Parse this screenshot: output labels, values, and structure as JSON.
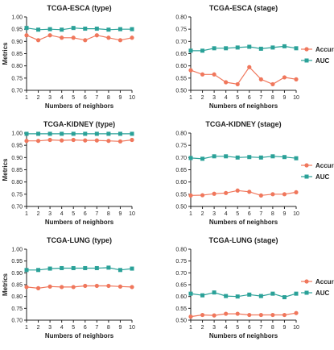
{
  "chart_data": [
    {
      "type": "line",
      "title": "TCGA-ESCA (type)",
      "xlabel": "Numbers of neighbors",
      "ylabel": "Metrics",
      "x": [
        1,
        2,
        3,
        4,
        5,
        6,
        7,
        8,
        9,
        10
      ],
      "ylim": [
        0.7,
        1.0
      ],
      "yticks": [
        "0.70",
        "0.75",
        "0.80",
        "0.85",
        "0.90",
        "0.95",
        "1.00"
      ],
      "series": [
        {
          "name": "Accuracy",
          "color": "#f0775c",
          "marker": "circle",
          "values": [
            0.925,
            0.905,
            0.925,
            0.915,
            0.915,
            0.905,
            0.925,
            0.915,
            0.905,
            0.915
          ]
        },
        {
          "name": "AUC",
          "color": "#2aa198",
          "marker": "square",
          "values": [
            0.955,
            0.948,
            0.95,
            0.948,
            0.955,
            0.952,
            0.952,
            0.948,
            0.95,
            0.95
          ]
        }
      ],
      "legend": false,
      "grid": false
    },
    {
      "type": "line",
      "title": "TCGA-ESCA (stage)",
      "xlabel": "Numbers of neighbors",
      "ylabel": "",
      "x": [
        1,
        2,
        3,
        4,
        5,
        6,
        7,
        8,
        9,
        10
      ],
      "ylim": [
        0.5,
        0.8
      ],
      "yticks": [
        "0.50",
        "0.55",
        "0.60",
        "0.65",
        "0.70",
        "0.75",
        "0.80"
      ],
      "series": [
        {
          "name": "Accuracy",
          "color": "#f0775c",
          "marker": "circle",
          "values": [
            0.582,
            0.565,
            0.565,
            0.533,
            0.525,
            0.595,
            0.545,
            0.525,
            0.553,
            0.545
          ]
        },
        {
          "name": "AUC",
          "color": "#2aa198",
          "marker": "square",
          "values": [
            0.662,
            0.662,
            0.672,
            0.672,
            0.675,
            0.678,
            0.67,
            0.675,
            0.68,
            0.672
          ]
        }
      ],
      "legend": true,
      "legend_position": "right"
    },
    {
      "type": "line",
      "title": "TCGA-KIDNEY (type)",
      "xlabel": "Numbers of neighbors",
      "ylabel": "Metrics",
      "x": [
        1,
        2,
        3,
        4,
        5,
        6,
        7,
        8,
        9,
        10
      ],
      "ylim": [
        0.7,
        1.0
      ],
      "yticks": [
        "0.70",
        "0.75",
        "0.80",
        "0.85",
        "0.90",
        "0.95",
        "1.00"
      ],
      "series": [
        {
          "name": "Accuracy",
          "color": "#f0775c",
          "marker": "circle",
          "values": [
            0.968,
            0.968,
            0.972,
            0.97,
            0.972,
            0.97,
            0.97,
            0.968,
            0.966,
            0.972
          ]
        },
        {
          "name": "AUC",
          "color": "#2aa198",
          "marker": "square",
          "values": [
            0.997,
            0.997,
            0.997,
            0.997,
            0.997,
            0.997,
            0.997,
            0.997,
            0.997,
            0.997
          ]
        }
      ],
      "legend": false
    },
    {
      "type": "line",
      "title": "TCGA-KIDNEY (stage)",
      "xlabel": "Numbers of neighbors",
      "ylabel": "",
      "x": [
        1,
        2,
        3,
        4,
        5,
        6,
        7,
        8,
        9,
        10
      ],
      "ylim": [
        0.5,
        0.8
      ],
      "yticks": [
        "0.50",
        "0.55",
        "0.60",
        "0.65",
        "0.70",
        "0.75",
        "0.80"
      ],
      "series": [
        {
          "name": "Accuracy",
          "color": "#f0775c",
          "marker": "circle",
          "values": [
            0.545,
            0.546,
            0.552,
            0.555,
            0.565,
            0.56,
            0.545,
            0.55,
            0.55,
            0.558
          ]
        },
        {
          "name": "AUC",
          "color": "#2aa198",
          "marker": "square",
          "values": [
            0.698,
            0.695,
            0.705,
            0.705,
            0.7,
            0.702,
            0.7,
            0.705,
            0.702,
            0.697
          ]
        }
      ],
      "legend": true,
      "legend_position": "right"
    },
    {
      "type": "line",
      "title": "TCGA-LUNG (type)",
      "xlabel": "Numbers of neighbors",
      "ylabel": "Metrics",
      "x": [
        1,
        2,
        3,
        4,
        5,
        6,
        7,
        8,
        9,
        10
      ],
      "ylim": [
        0.7,
        1.0
      ],
      "yticks": [
        "0.70",
        "0.75",
        "0.80",
        "0.85",
        "0.90",
        "0.95",
        "1.00"
      ],
      "series": [
        {
          "name": "Accuracy",
          "color": "#f0775c",
          "marker": "circle",
          "values": [
            0.84,
            0.835,
            0.842,
            0.84,
            0.84,
            0.845,
            0.845,
            0.845,
            0.842,
            0.84
          ]
        },
        {
          "name": "AUC",
          "color": "#2aa198",
          "marker": "square",
          "values": [
            0.912,
            0.912,
            0.918,
            0.92,
            0.92,
            0.92,
            0.92,
            0.922,
            0.912,
            0.918
          ]
        }
      ],
      "legend": false
    },
    {
      "type": "line",
      "title": "TCGA-LUNG (stage)",
      "xlabel": "Numbers of neighbors",
      "ylabel": "",
      "x": [
        1,
        2,
        3,
        4,
        5,
        6,
        7,
        8,
        9,
        10
      ],
      "ylim": [
        0.5,
        0.8
      ],
      "yticks": [
        "0.50",
        "0.55",
        "0.60",
        "0.65",
        "0.70",
        "0.75",
        "0.80"
      ],
      "series": [
        {
          "name": "Accuracy",
          "color": "#f0775c",
          "marker": "circle",
          "values": [
            0.515,
            0.522,
            0.52,
            0.527,
            0.527,
            0.522,
            0.522,
            0.522,
            0.522,
            0.53
          ]
        },
        {
          "name": "AUC",
          "color": "#2aa198",
          "marker": "square",
          "values": [
            0.612,
            0.605,
            0.617,
            0.602,
            0.6,
            0.608,
            0.602,
            0.612,
            0.597,
            0.612
          ]
        }
      ],
      "legend": true,
      "legend_position": "right"
    }
  ]
}
